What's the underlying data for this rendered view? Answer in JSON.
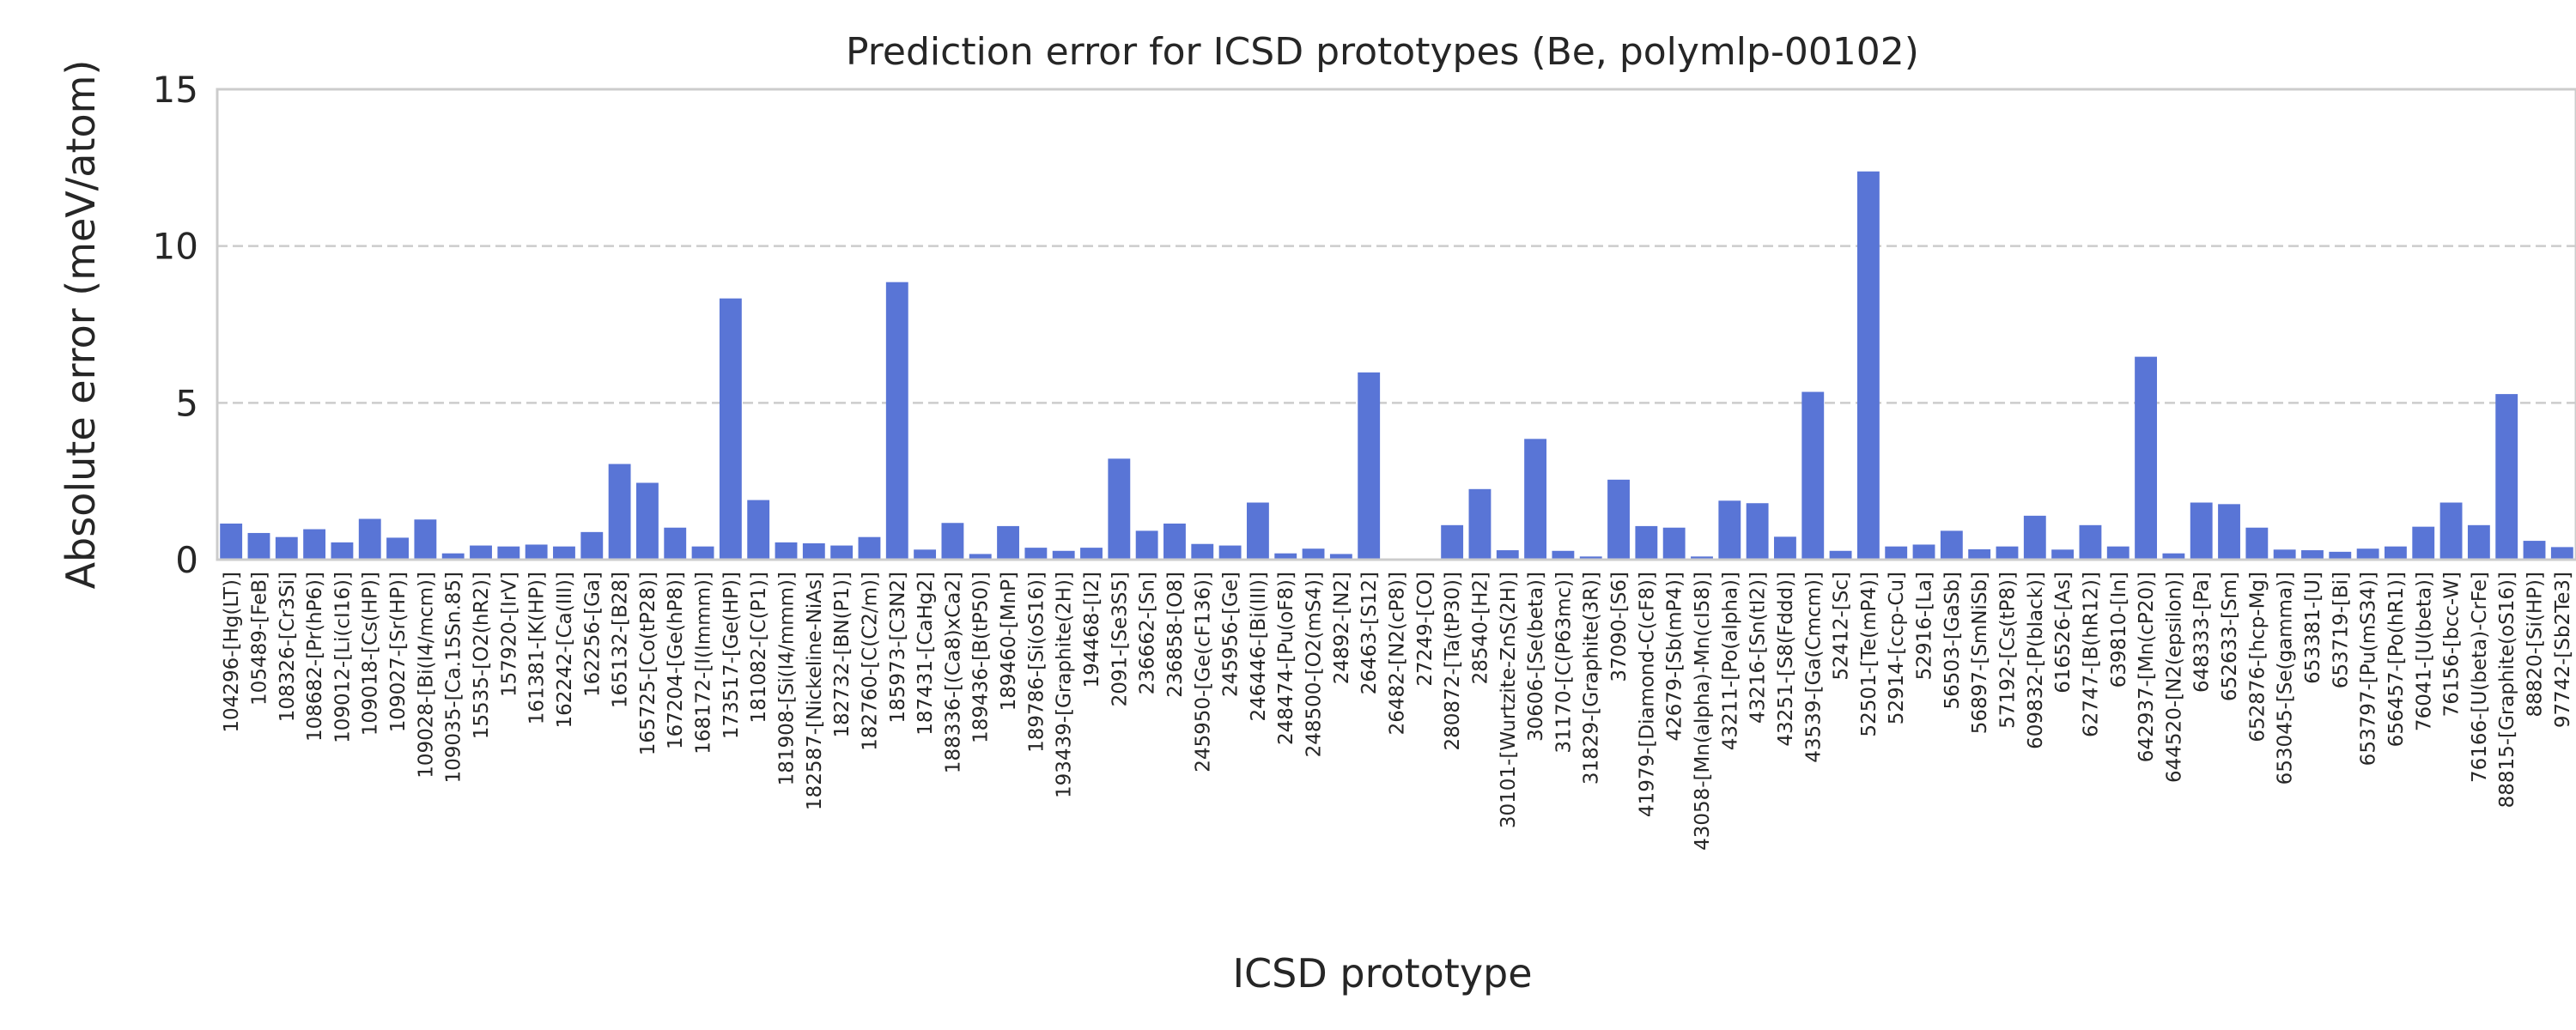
{
  "chart_data": {
    "type": "bar",
    "title": "Prediction error for ICSD prototypes (Be, polymlp-00102)",
    "xlabel": "ICSD prototype",
    "ylabel": "Absolute error (meV/atom)",
    "ylim": [
      0,
      15
    ],
    "yticks": [
      0,
      5,
      10,
      15
    ],
    "grid": "horizontal dashed",
    "legend": "none",
    "bar_color": "#5975d6",
    "categories": [
      "104296-[Hg(LT)]",
      "105489-[FeB]",
      "108326-[Cr3Si]",
      "108682-[Pr(hP6)]",
      "109012-[Li(cI16)]",
      "109018-[Cs(HP)]",
      "109027-[Sr(HP)]",
      "109028-[Bi(I4/mcm)]",
      "109035-[Ca.15Sn.85]",
      "15535-[O2(hR2)]",
      "157920-[IrV]",
      "161381-[K(HP)]",
      "162242-[Ca(III)]",
      "162256-[Ga]",
      "165132-[B28]",
      "165725-[Co(tP28)]",
      "167204-[Ge(hP8)]",
      "168172-[I(Immm)]",
      "173517-[Ge(HP)]",
      "181082-[C(P1)]",
      "181908-[Si(I4/mmm)]",
      "182587-[Nickeline-NiAs]",
      "182732-[BN(P1)]",
      "182760-[C(C2/m)]",
      "185973-[C3N2]",
      "187431-[CaHg2]",
      "188336-[(Ca8)xCa2]",
      "189436-[B(tP50)]",
      "189460-[MnP]",
      "189786-[Si(oS16)]",
      "193439-[Graphite(2H)]",
      "194468-[I2]",
      "2091-[Se3S5]",
      "236662-[Sn]",
      "236858-[O8]",
      "245950-[Ge(cF136)]",
      "245956-[Ge]",
      "246446-[Bi(III)]",
      "248474-[Pu(oF8)]",
      "248500-[O2(mS4)]",
      "24892-[N2]",
      "26463-[S12]",
      "26482-[N2(cP8)]",
      "27249-[CO]",
      "280872-[Ta(tP30)]",
      "28540-[H2]",
      "30101-[Wurtzite-ZnS(2H)]",
      "30606-[Se(beta)]",
      "31170-[C(P63mc)]",
      "31829-[Graphite(3R)]",
      "37090-[S6]",
      "41979-[Diamond-C(cF8)]",
      "42679-[Sb(mP4)]",
      "43058-[Mn(alpha)-Mn(cI58)]",
      "43211-[Po(alpha)]",
      "43216-[Sn(tI2)]",
      "43251-[S8(Fddd)]",
      "43539-[Ga(Cmcm)]",
      "52412-[Sc]",
      "52501-[Te(mP4)]",
      "52914-[ccp-Cu]",
      "52916-[La]",
      "56503-[GaSb]",
      "56897-[SmNiSb]",
      "57192-[Cs(tP8)]",
      "609832-[P(black)]",
      "616526-[As]",
      "62747-[B(hR12)]",
      "639810-[In]",
      "642937-[Mn(cP20)]",
      "644520-[N2(epsilon)]",
      "648333-[Pa]",
      "652633-[Sm]",
      "652876-[hcp-Mg]",
      "653045-[Se(gamma)]",
      "653381-[U]",
      "653719-[Bi]",
      "653797-[Pu(mS34)]",
      "656457-[Po(hR1)]",
      "76041-[U(beta)]",
      "76156-[bcc-W]",
      "76166-[U(beta)-CrFe]",
      "88815-[Graphite(oS16)]",
      "88820-[Si(HP)]",
      "97742-[Sb2Te3]"
    ],
    "values": [
      1.15,
      0.85,
      0.72,
      0.97,
      0.55,
      1.3,
      0.7,
      1.28,
      0.2,
      0.45,
      0.42,
      0.48,
      0.42,
      0.88,
      3.05,
      2.45,
      1.02,
      0.42,
      8.33,
      1.9,
      0.55,
      0.52,
      0.45,
      0.72,
      8.85,
      0.32,
      1.17,
      0.18,
      1.07,
      0.38,
      0.28,
      0.38,
      3.22,
      0.92,
      1.15,
      0.5,
      0.45,
      1.82,
      0.2,
      0.35,
      0.18,
      5.97,
      0.0,
      0.0,
      1.1,
      2.25,
      0.3,
      3.85,
      0.28,
      0.1,
      2.55,
      1.07,
      1.02,
      0.1,
      1.88,
      1.8,
      0.73,
      5.35,
      0.28,
      12.38,
      0.42,
      0.48,
      0.92,
      0.33,
      0.42,
      1.4,
      0.32,
      1.1,
      0.42,
      6.47,
      0.2,
      1.82,
      1.77,
      1.02,
      0.32,
      0.3,
      0.25,
      0.35,
      0.42,
      1.05,
      1.82,
      1.1,
      5.28,
      0.6,
      0.4
    ]
  }
}
